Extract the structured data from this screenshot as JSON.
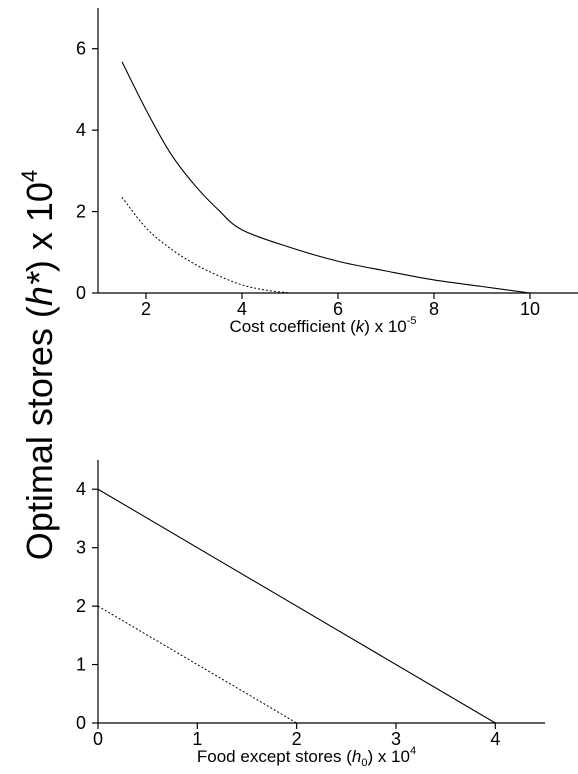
{
  "shared_ylabel": {
    "pre": "Optimal stores (",
    "sym": "h*",
    "post": ") x 10",
    "exp": "4"
  },
  "chart_data": [
    {
      "type": "line",
      "xlabel": {
        "pre": "Cost coefficient (",
        "sym": "k",
        "post": ") x 10",
        "exp": "-5"
      },
      "ylabel": "",
      "xlim": [
        1,
        11
      ],
      "ylim": [
        0,
        7
      ],
      "xticks": [
        2,
        4,
        6,
        8,
        10
      ],
      "xtick_labels": [
        "2",
        "4",
        "6",
        "8",
        "10"
      ],
      "yticks": [
        0,
        2,
        4,
        6
      ],
      "ytick_labels": [
        "0",
        "2",
        "4",
        "6"
      ],
      "grid": false,
      "series": [
        {
          "style": "solid",
          "color": "#000000",
          "x": [
            1.5,
            2,
            2.5,
            3,
            3.5,
            4,
            5,
            6,
            7,
            8,
            9,
            10
          ],
          "y": [
            5.68,
            4.5,
            3.45,
            2.67,
            2.05,
            1.55,
            1.12,
            0.78,
            0.54,
            0.32,
            0.16,
            0.0
          ]
        },
        {
          "style": "dotted",
          "color": "#000000",
          "x": [
            1.5,
            2,
            2.5,
            3,
            3.5,
            4,
            4.5,
            5
          ],
          "y": [
            2.35,
            1.6,
            1.1,
            0.72,
            0.43,
            0.2,
            0.07,
            0.0
          ]
        }
      ]
    },
    {
      "type": "line",
      "xlabel": {
        "pre": "Food except stores (",
        "sym": "h",
        "sub": "0",
        "post": ") x 10",
        "exp": "4"
      },
      "ylabel": "",
      "xlim": [
        0,
        4.5
      ],
      "ylim": [
        0,
        4.5
      ],
      "xticks": [
        0,
        1,
        2,
        3,
        4
      ],
      "xtick_labels": [
        "0",
        "1",
        "2",
        "3",
        "4"
      ],
      "yticks": [
        0,
        1,
        2,
        3,
        4
      ],
      "ytick_labels": [
        "0",
        "1",
        "2",
        "3",
        "4"
      ],
      "grid": false,
      "series": [
        {
          "style": "solid",
          "color": "#000000",
          "x": [
            0,
            4
          ],
          "y": [
            4,
            0
          ]
        },
        {
          "style": "dotted",
          "color": "#000000",
          "x": [
            0,
            2
          ],
          "y": [
            2,
            0
          ]
        }
      ]
    }
  ]
}
